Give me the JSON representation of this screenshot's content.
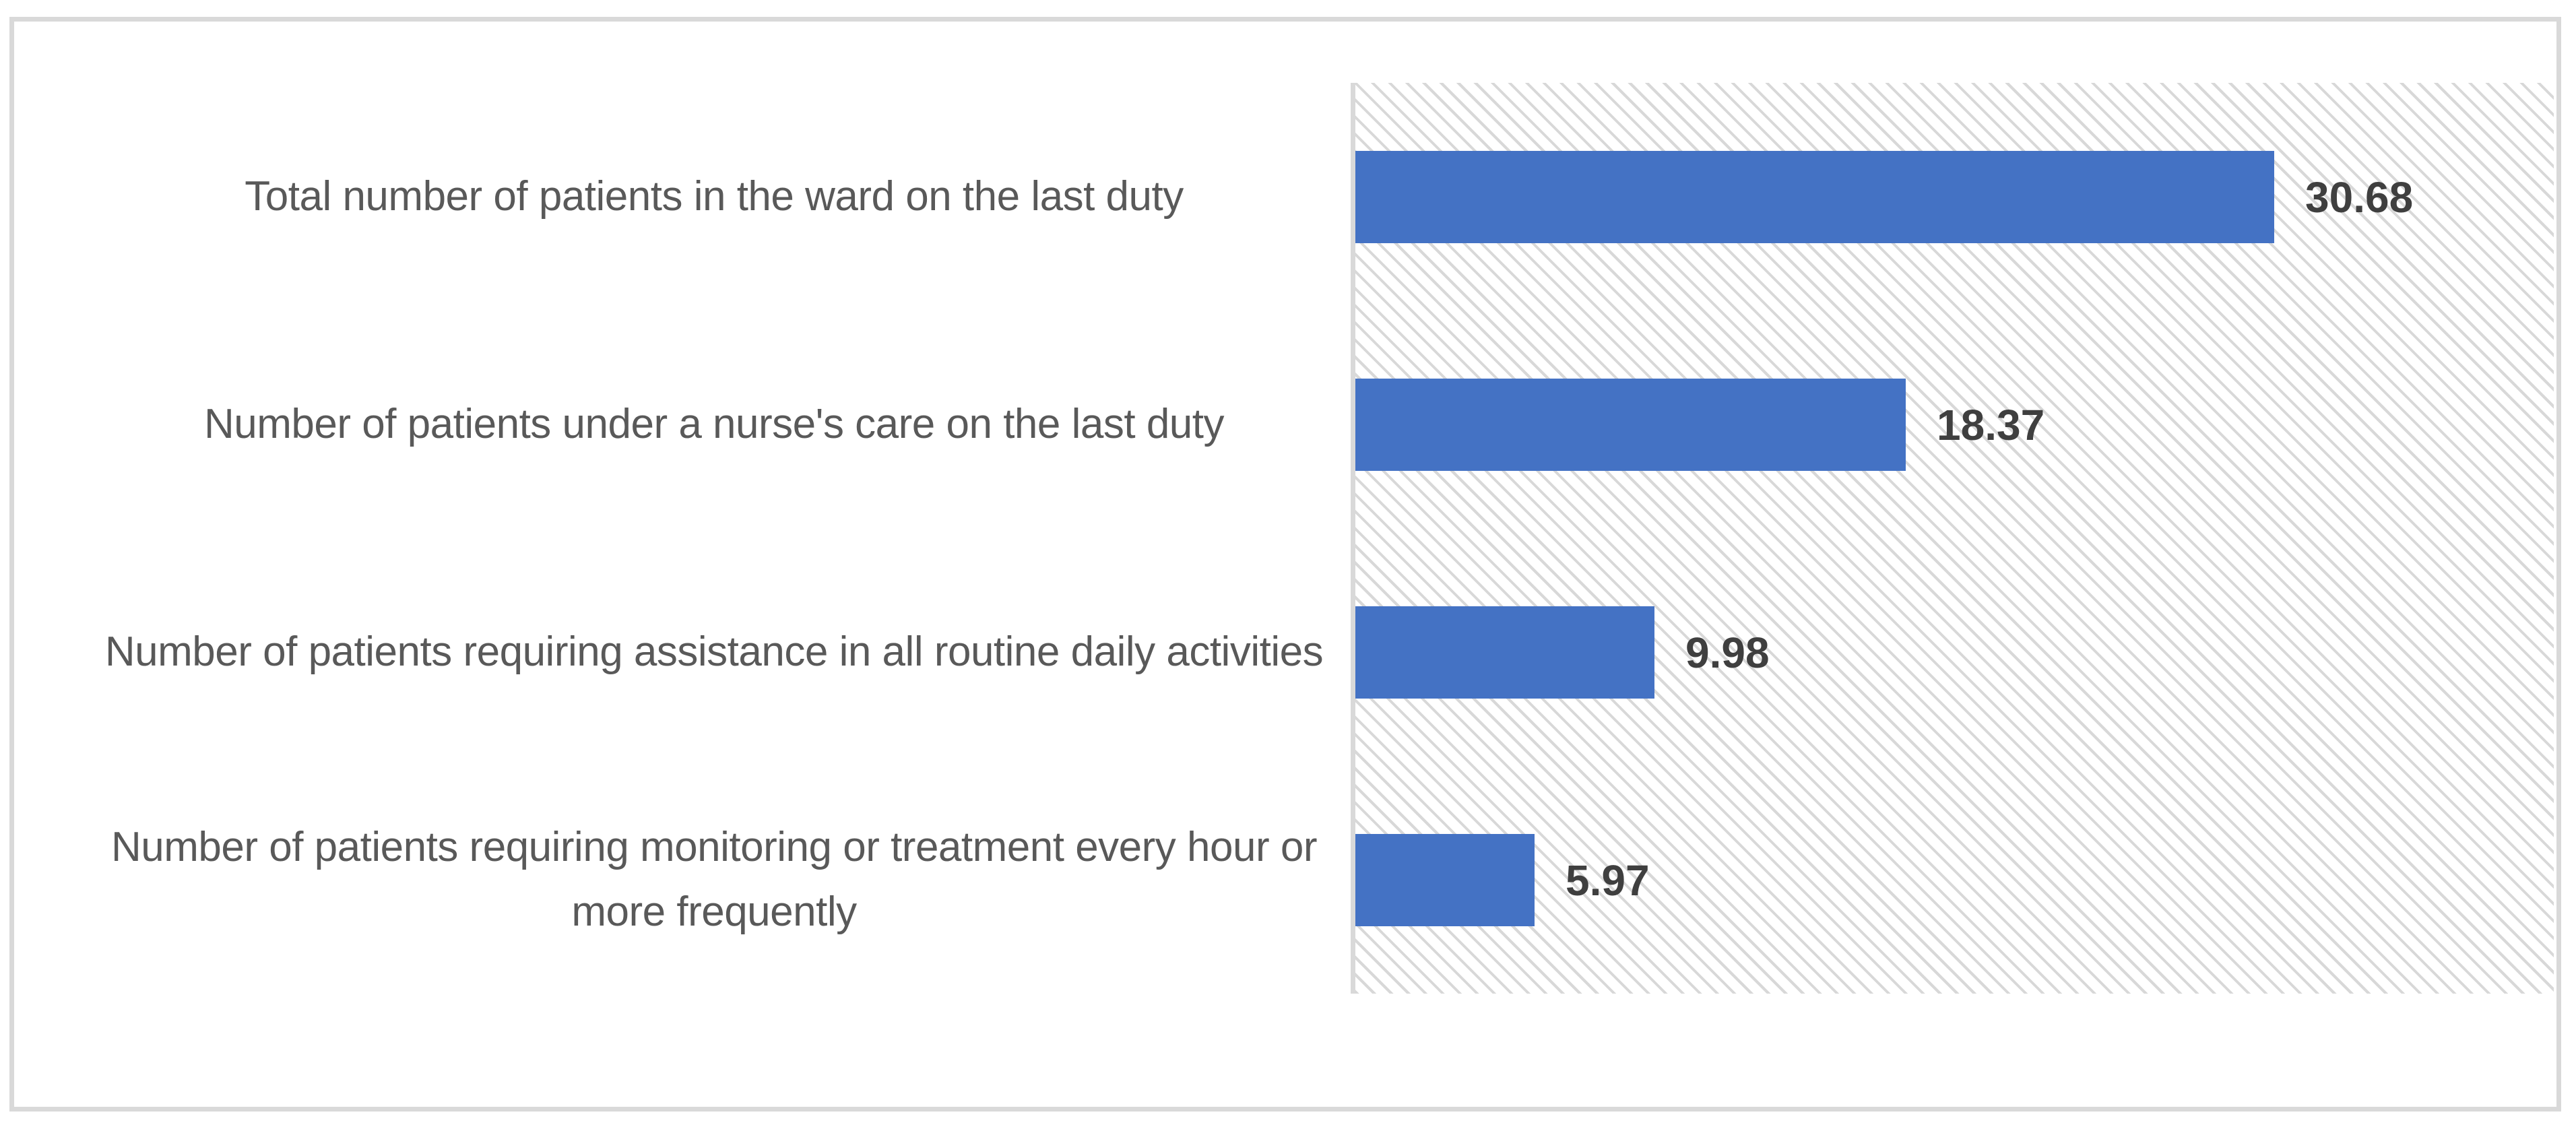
{
  "chart_data": {
    "type": "bar",
    "orientation": "horizontal",
    "title": "",
    "xlabel": "",
    "ylabel": "",
    "categories": [
      "Total number of patients in the ward on the last duty",
      "Number of patients under a nurse's care on the last duty",
      "Number of patients requiring assistance in all routine daily activities",
      "Number of patients requiring monitoring or treatment every hour or more frequently"
    ],
    "values": [
      30.68,
      18.37,
      9.98,
      5.97
    ],
    "value_labels": [
      "30.68",
      "18.37",
      "9.98",
      "5.97"
    ],
    "xlim": [
      0,
      40
    ],
    "grid": false,
    "legend": null,
    "value_labels_shown": true,
    "colors": {
      "bar": "#4472C4",
      "value_label_text": "#3F3F3F",
      "category_label_text": "#595959",
      "figure_border": "#D9D9D9",
      "axis_line": "#D9D9D9",
      "plot_hatch_dots": "#D8D8D8",
      "background": "#FFFFFF"
    },
    "plot_background_style": "light-diagonal-hatch"
  }
}
